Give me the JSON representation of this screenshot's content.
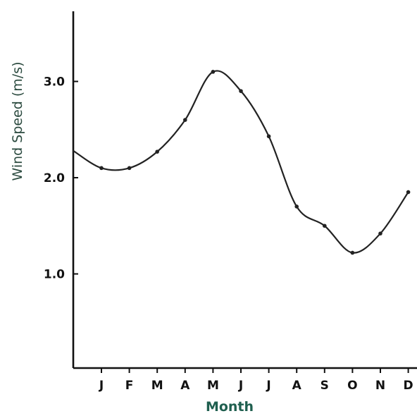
{
  "chart_data": {
    "type": "line",
    "title": "",
    "xlabel": "Month",
    "ylabel": "Wind Speed (m/s)",
    "categories": [
      "J",
      "F",
      "M",
      "A",
      "M",
      "J",
      "J",
      "A",
      "S",
      "O",
      "N",
      "D"
    ],
    "y_ticks": [
      "1.0",
      "2.0",
      "3.0"
    ],
    "ylim": [
      0,
      3.7
    ],
    "grid": false,
    "series": [
      {
        "values": [
          2.1,
          2.1,
          2.27,
          2.6,
          3.1,
          2.9,
          2.43,
          1.7,
          1.5,
          1.22,
          1.42,
          1.85
        ],
        "start_value": 2.28,
        "color": "#222222"
      }
    ],
    "colors": {
      "axis": "#111111",
      "line": "#222222",
      "xlabel": "#1f5f4f",
      "ylabel": "#2b4a3f"
    }
  }
}
